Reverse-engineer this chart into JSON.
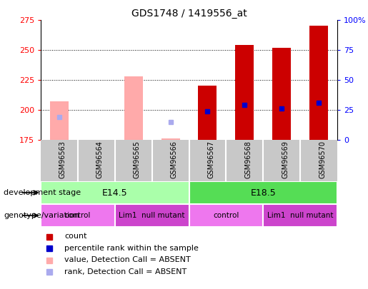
{
  "title": "GDS1748 / 1419556_at",
  "samples": [
    "GSM96563",
    "GSM96564",
    "GSM96565",
    "GSM96566",
    "GSM96567",
    "GSM96568",
    "GSM96569",
    "GSM96570"
  ],
  "count_values": [
    207,
    175,
    228,
    176,
    220,
    254,
    252,
    270
  ],
  "rank_values": [
    null,
    null,
    null,
    null,
    24,
    29,
    26,
    31
  ],
  "count_absent": [
    true,
    true,
    true,
    true,
    false,
    false,
    false,
    false
  ],
  "rank_absent_values": [
    19,
    null,
    null,
    15,
    null,
    null,
    null,
    null
  ],
  "ylim_left": [
    175,
    275
  ],
  "ylim_right": [
    0,
    100
  ],
  "yticks_left": [
    175,
    200,
    225,
    250,
    275
  ],
  "yticks_right": [
    0,
    25,
    50,
    75,
    100
  ],
  "ytick_labels_right": [
    "0",
    "25",
    "50",
    "75",
    "100%"
  ],
  "color_count_present": "#cc0000",
  "color_count_absent": "#ffaaaa",
  "color_rank_present": "#0000cc",
  "color_rank_absent": "#aaaaee",
  "development_stages": [
    {
      "label": "E14.5",
      "start": 0,
      "end": 4,
      "color": "#aaffaa"
    },
    {
      "label": "E18.5",
      "start": 4,
      "end": 8,
      "color": "#55dd55"
    }
  ],
  "genotype_groups": [
    {
      "label": "control",
      "start": 0,
      "end": 2,
      "color": "#ee77ee"
    },
    {
      "label": "Lim1  null mutant",
      "start": 2,
      "end": 4,
      "color": "#cc44cc"
    },
    {
      "label": "control",
      "start": 4,
      "end": 6,
      "color": "#ee77ee"
    },
    {
      "label": "Lim1  null mutant",
      "start": 6,
      "end": 8,
      "color": "#cc44cc"
    }
  ],
  "legend_items": [
    {
      "label": "count",
      "color": "#cc0000"
    },
    {
      "label": "percentile rank within the sample",
      "color": "#0000cc"
    },
    {
      "label": "value, Detection Call = ABSENT",
      "color": "#ffaaaa"
    },
    {
      "label": "rank, Detection Call = ABSENT",
      "color": "#aaaaee"
    }
  ],
  "dev_stage_label": "development stage",
  "genotype_label": "genotype/variation",
  "bar_width": 0.5,
  "grid_ticks": [
    200,
    225,
    250
  ],
  "background_color": "#ffffff",
  "xtick_bg": "#c8c8c8"
}
